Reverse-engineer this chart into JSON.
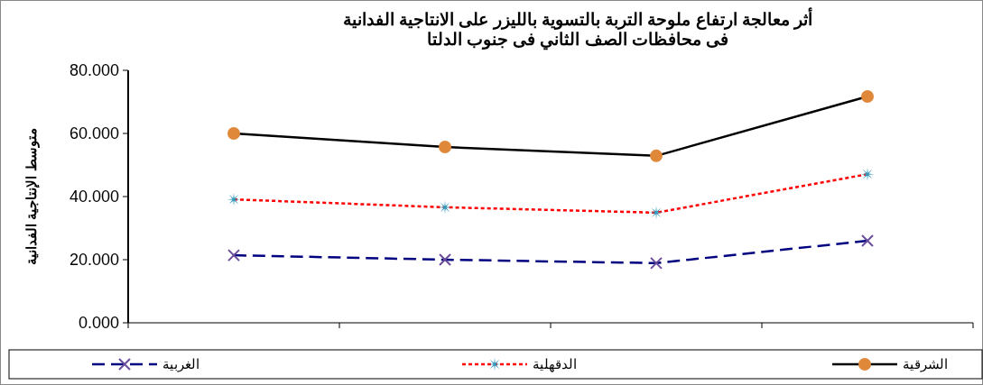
{
  "chart_data": {
    "type": "line",
    "title": "أثر معالجة ارتفاع ملوحة التربة بالتسوية بالليزر على الانتاجية الفدانية\nفى محافظات الصف الثاني فى جنوب الدلتا",
    "ylabel": "متوسط الإنتاجية الفدانية",
    "categories": [
      null,
      null,
      null,
      null
    ],
    "series": [
      {
        "name": "الشرقية",
        "color": "#000000",
        "line_style": "solid",
        "marker": "circle",
        "values": [
          60.0,
          55.7,
          52.9,
          71.7
        ]
      },
      {
        "name": "الدقهلية",
        "color": "#ff0000",
        "line_style": "dotted",
        "marker": "star",
        "values": [
          39.1,
          36.6,
          34.9,
          47.1
        ]
      },
      {
        "name": "الغربية",
        "color": "#000080",
        "line_style": "dashed",
        "marker": "cross",
        "values": [
          21.4,
          20.0,
          18.9,
          26.0
        ]
      }
    ],
    "ylim": [
      0,
      80
    ],
    "yticks": [
      {
        "value": 0,
        "label": "0.000"
      },
      {
        "value": 20,
        "label": "20.000"
      },
      {
        "value": 40,
        "label": "40.000"
      },
      {
        "value": 60,
        "label": "60.000"
      },
      {
        "value": 80,
        "label": "80.000"
      }
    ],
    "grid": false,
    "legend": "bottom"
  }
}
